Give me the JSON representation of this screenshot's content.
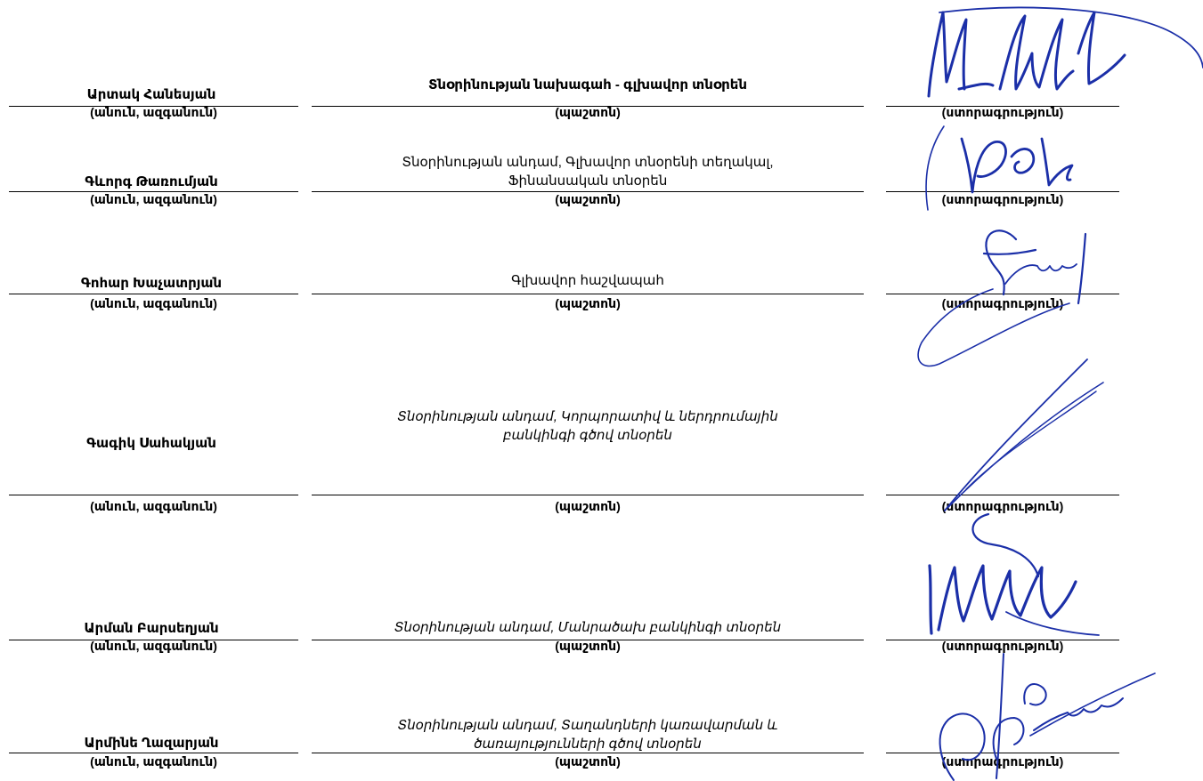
{
  "captions": {
    "name": "(անուն, ազգանուն)",
    "position": "(պաշտոն)",
    "signature": "(ստորագրություն)"
  },
  "colors": {
    "ink": "#000000",
    "signature": "#1b2fa8"
  },
  "signatories": [
    {
      "name": "Արտակ Հանեսյան",
      "position": "Տնօրինության նախագահ - գլխավոր տնօրեն"
    },
    {
      "name": "Գևորգ Թառումյան",
      "position_lines": [
        "Տնօրինության անդամ, Գլխավոր տնօրենի տեղակալ,",
        "Ֆինանսական տնօրեն"
      ]
    },
    {
      "name": "Գոհար Խաչատրյան",
      "position": "Գլխավոր հաշվապահ"
    },
    {
      "name": "Գագիկ Սահակյան",
      "position_lines": [
        "Տնօրինության անդամ, Կորպորատիվ և ներդրումային",
        "բանկինգի գծով տնօրեն"
      ]
    },
    {
      "name": "Արման Բարսեղյան",
      "position": "Տնօրինության անդամ, Մանրածախ բանկինգի տնօրեն"
    },
    {
      "name": "Արմինե Ղազարյան",
      "position_lines": [
        "Տնօրինության անդամ, Տաղանդների կառավարման և",
        "ծառայությունների գծով տնօրեն"
      ]
    }
  ]
}
